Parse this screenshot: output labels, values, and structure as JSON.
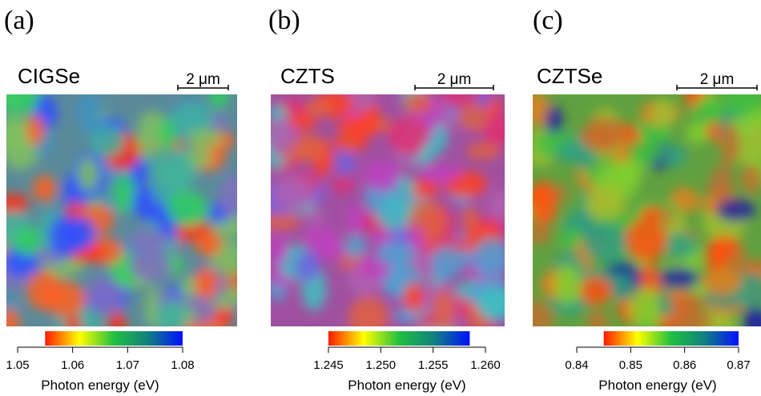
{
  "panels": [
    {
      "letter": "(a)",
      "material": "CIGSe",
      "scale_bar": "2 μm",
      "colorbar": {
        "xlim": [
          1.05,
          1.08
        ],
        "gradient_range": [
          1.055,
          1.08
        ],
        "ticks": [
          1.05,
          1.06,
          1.07,
          1.08
        ],
        "label": "Photon energy (eV)"
      }
    },
    {
      "letter": "(b)",
      "material": "CZTS",
      "scale_bar": "2 μm",
      "colorbar": {
        "xlim": [
          1.245,
          1.26
        ],
        "gradient_range": [
          1.245,
          1.2585
        ],
        "ticks": [
          1.245,
          {
            "value": 1.25,
            "label": "1.250"
          },
          1.255,
          {
            "value": 1.26,
            "label": "1.260"
          }
        ],
        "label": "Photon energy (eV)"
      }
    },
    {
      "letter": "(c)",
      "material": "CZTSe",
      "scale_bar": "2 μm",
      "colorbar": {
        "xlim": [
          0.84,
          0.87
        ],
        "gradient_range": [
          0.845,
          0.87
        ],
        "ticks": [
          0.84,
          0.85,
          0.86,
          0.87
        ],
        "label": "Photon energy (eV)"
      }
    }
  ],
  "colormap": [
    "#ff1a00",
    "#ffff00",
    "#20c040",
    "#108080",
    "#0010ff"
  ]
}
